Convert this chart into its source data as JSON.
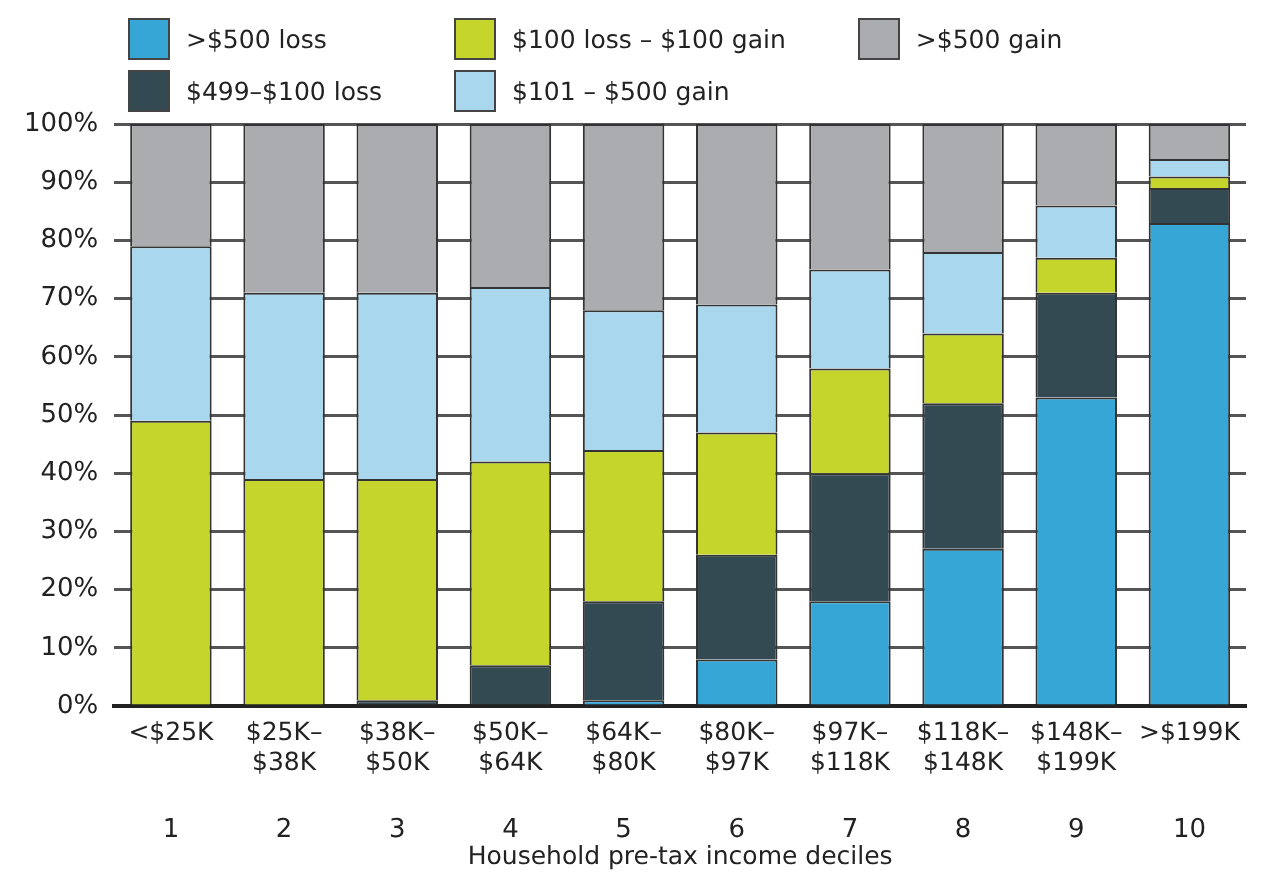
{
  "chart_data": {
    "type": "bar",
    "stacked": true,
    "xlabel": "Household pre-tax income deciles",
    "categories": [
      "<$25K",
      "$25K–$38K",
      "$38K–$50K",
      "$50K–$64K",
      "$64K–$80K",
      "$80K–$97K",
      "$97K–$118K",
      "$118K–$148K",
      "$148K–$199K",
      ">$199K"
    ],
    "series": [
      {
        "name": ">$500 loss",
        "color": "#36a6d6",
        "values": [
          0,
          0,
          0,
          0,
          1,
          8,
          18,
          27,
          53,
          83
        ]
      },
      {
        "name": "$499–$100 loss",
        "color": "#344a52",
        "values": [
          0,
          0,
          1,
          7,
          17,
          18,
          22,
          25,
          18,
          6
        ]
      },
      {
        "name": "$100 loss – $100 gain",
        "color": "#c5d52b",
        "values": [
          49,
          39,
          38,
          35,
          26,
          21,
          18,
          12,
          6,
          2
        ]
      },
      {
        "name": "$101 – $500 gain",
        "color": "#a9d8ee",
        "values": [
          30,
          32,
          32,
          30,
          24,
          22,
          17,
          14,
          9,
          3
        ]
      },
      {
        "name": ">$500 gain",
        "color": "#abacb0",
        "values": [
          21,
          29,
          29,
          28,
          32,
          31,
          25,
          22,
          14,
          6
        ]
      }
    ],
    "ylim": [
      0,
      100
    ],
    "yticks": [
      {
        "value": 0,
        "label": "0%"
      },
      {
        "value": 10,
        "label": "10%"
      },
      {
        "value": 20,
        "label": "20%"
      },
      {
        "value": 30,
        "label": "30%"
      },
      {
        "value": 40,
        "label": "40%"
      },
      {
        "value": 50,
        "label": "50%"
      },
      {
        "value": 60,
        "label": "60%"
      },
      {
        "value": 70,
        "label": "70%"
      },
      {
        "value": 80,
        "label": "80%"
      },
      {
        "value": 90,
        "label": "90%"
      },
      {
        "value": 100,
        "label": "100%"
      }
    ],
    "grid": "y",
    "legend": "top",
    "annotations": [
      "1",
      "2",
      "3",
      "4",
      "5",
      "6",
      "7",
      "8",
      "9",
      "10"
    ]
  }
}
